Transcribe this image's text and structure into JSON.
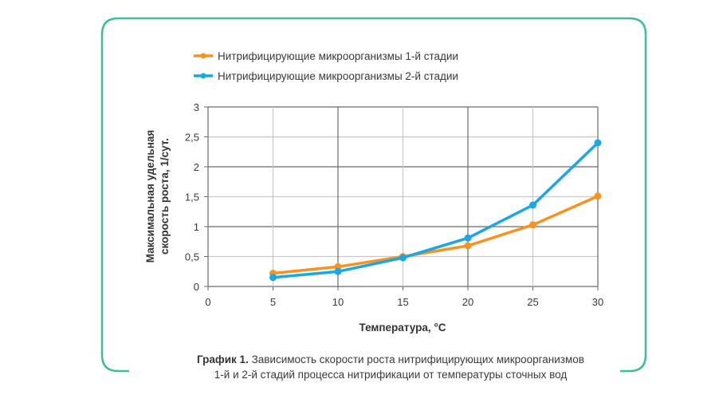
{
  "frame": {
    "border_color": "#3dbf8f"
  },
  "caption": {
    "label": "График 1.",
    "line1": "Зависимость скорости роста нитрифицирующих микроорганизмов",
    "line2": "1-й и 2-й стадий процесса нитрификации от температуры сточных вод"
  },
  "chart_data": {
    "type": "line",
    "title": "",
    "xlabel": "Температура, °C",
    "ylabel_line1": "Максимальная удельная",
    "ylabel_line2": "скорость роста, 1/сут.",
    "ylabel": "Максимальная удельная скорость роста, 1/сут.",
    "x_ticks": [
      "0",
      "5",
      "10",
      "15",
      "20",
      "25",
      "30"
    ],
    "y_ticks": [
      "0",
      "0,5",
      "1",
      "1,5",
      "2",
      "2,5",
      "3"
    ],
    "xlim": [
      0,
      30
    ],
    "ylim": [
      0,
      3
    ],
    "grid": true,
    "legend_position": "top-left",
    "x": [
      5,
      10,
      15,
      20,
      25,
      30
    ],
    "series": [
      {
        "name": "Нитрифицирующие микроорганизмы 1-й стадии",
        "color": "#f7931e",
        "values": [
          0.22,
          0.33,
          0.5,
          0.68,
          1.03,
          1.51
        ]
      },
      {
        "name": "Нитрифицирующие микроорганизмы 2-й стадии",
        "color": "#1ba6e5",
        "values": [
          0.15,
          0.25,
          0.48,
          0.81,
          1.36,
          2.4
        ]
      }
    ]
  }
}
